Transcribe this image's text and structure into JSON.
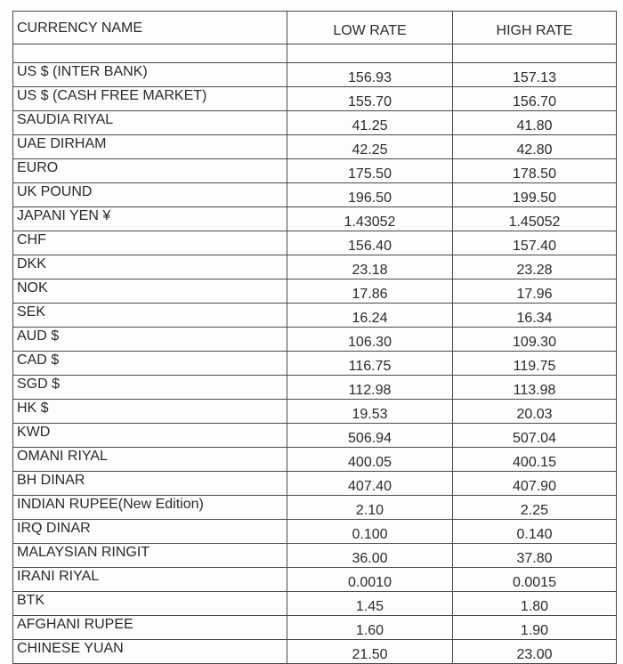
{
  "table": {
    "headers": [
      "CURRENCY NAME",
      "LOW RATE",
      "HIGH RATE"
    ],
    "rows": [
      {
        "name": "US $ (INTER BANK)",
        "low": "156.93",
        "high": "157.13"
      },
      {
        "name": "US $ (CASH FREE MARKET)",
        "low": "155.70",
        "high": "156.70"
      },
      {
        "name": "SAUDIA RIYAL",
        "low": "41.25",
        "high": "41.80"
      },
      {
        "name": "UAE DIRHAM",
        "low": "42.25",
        "high": "42.80"
      },
      {
        "name": "EURO",
        "low": "175.50",
        "high": "178.50"
      },
      {
        "name": "UK POUND",
        "low": "196.50",
        "high": "199.50"
      },
      {
        "name": "JAPANI YEN ¥",
        "low": "1.43052",
        "high": "1.45052"
      },
      {
        "name": "CHF",
        "low": "156.40",
        "high": "157.40"
      },
      {
        "name": "DKK",
        "low": "23.18",
        "high": "23.28"
      },
      {
        "name": "NOK",
        "low": "17.86",
        "high": "17.96"
      },
      {
        "name": "SEK",
        "low": "16.24",
        "high": "16.34"
      },
      {
        "name": "AUD $",
        "low": "106.30",
        "high": "109.30"
      },
      {
        "name": "CAD $",
        "low": "116.75",
        "high": "119.75"
      },
      {
        "name": "SGD $",
        "low": "112.98",
        "high": "113.98"
      },
      {
        "name": "HK $",
        "low": "19.53",
        "high": "20.03"
      },
      {
        "name": "KWD",
        "low": "506.94",
        "high": "507.04"
      },
      {
        "name": "OMANI RIYAL",
        "low": "400.05",
        "high": "400.15"
      },
      {
        "name": "BH DINAR",
        "low": "407.40",
        "high": "407.90"
      },
      {
        "name": "INDIAN RUPEE(New Edition)",
        "low": "2.10",
        "high": "2.25"
      },
      {
        "name": "IRQ DINAR",
        "low": "0.100",
        "high": "0.140"
      },
      {
        "name": "MALAYSIAN RINGIT",
        "low": "36.00",
        "high": "37.80"
      },
      {
        "name": "IRANI RIYAL",
        "low": "0.0010",
        "high": "0.0015"
      },
      {
        "name": "BTK",
        "low": "1.45",
        "high": "1.80"
      },
      {
        "name": "AFGHANI RUPEE",
        "low": "1.60",
        "high": "1.90"
      },
      {
        "name": "CHINESE YUAN",
        "low": "21.50",
        "high": "23.00"
      }
    ]
  }
}
